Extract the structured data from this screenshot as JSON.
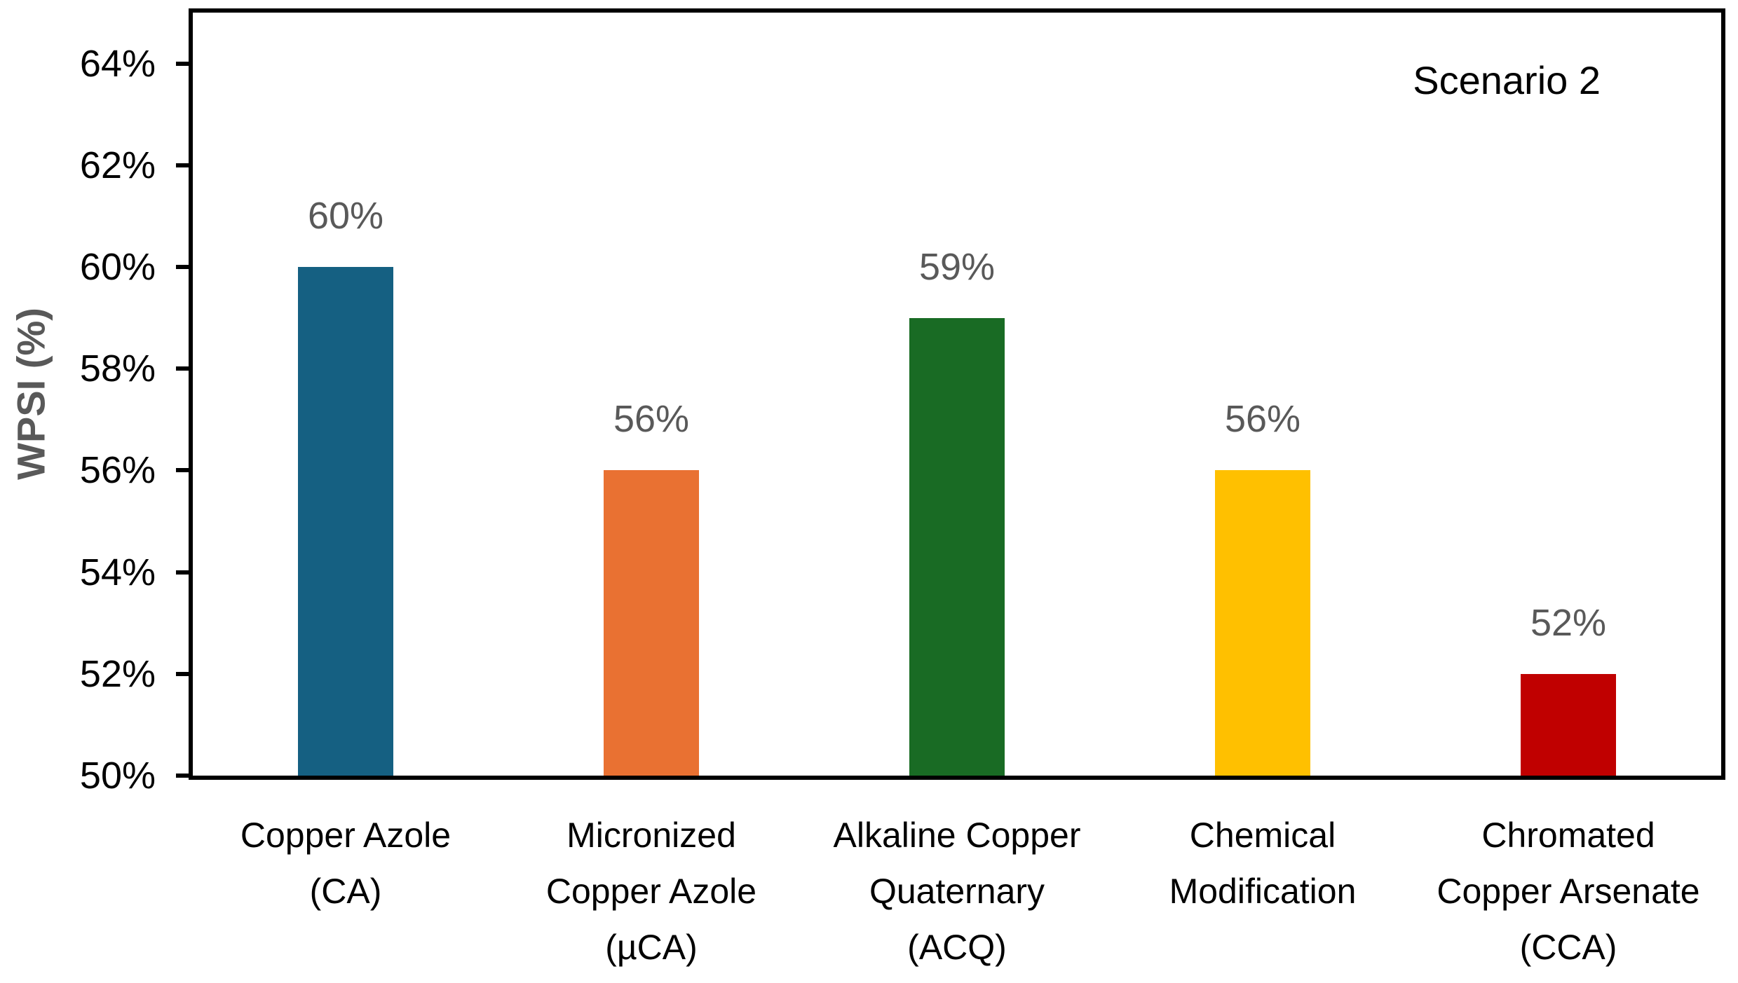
{
  "chart_data": {
    "type": "bar",
    "title": "Scenario 2",
    "xlabel": "",
    "ylabel": "WPSI (%)",
    "ylim": [
      50,
      65
    ],
    "ytick_values": [
      50,
      52,
      54,
      56,
      58,
      60,
      62,
      64
    ],
    "ytick_labels": [
      "50%",
      "52%",
      "54%",
      "56%",
      "58%",
      "60%",
      "62%",
      "64%"
    ],
    "categories": [
      "Copper Azole\n(CA)",
      "Micronized\nCopper Azole\n(µCA)",
      "Alkaline Copper\nQuaternary\n(ACQ)",
      "Chemical\nModification",
      "Chromated\nCopper Arsenate\n(CCA)"
    ],
    "values": [
      60,
      56,
      59,
      56,
      52
    ],
    "data_labels": [
      "60%",
      "56%",
      "59%",
      "56%",
      "52%"
    ],
    "bar_colors": [
      "#156082",
      "#E97132",
      "#196B24",
      "#FFC000",
      "#C00000"
    ],
    "grid": false,
    "legend_position": "none",
    "annotation": "Scenario 2",
    "colors": {
      "axis": "#000000",
      "tick_label": "#000000",
      "category_label": "#000000",
      "data_label": "#595959",
      "axis_title": "#595959",
      "background": "#ffffff"
    }
  }
}
